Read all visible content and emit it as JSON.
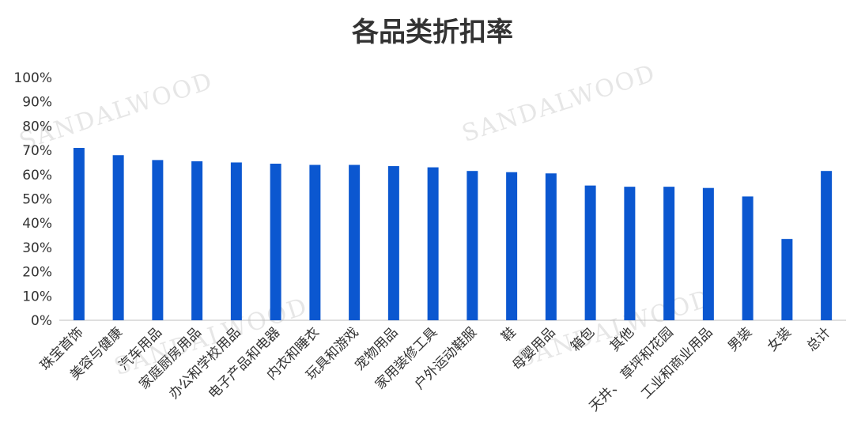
{
  "chart_data": {
    "type": "bar",
    "title": "各品类折扣率",
    "xlabel": "",
    "ylabel": "",
    "ylim": [
      0,
      1
    ],
    "yticks": [
      "0%",
      "10%",
      "20%",
      "30%",
      "40%",
      "50%",
      "60%",
      "70%",
      "80%",
      "90%",
      "100%"
    ],
    "categories": [
      "珠宝首饰",
      "美容与健康",
      "汽车用品",
      "家庭厨房用品",
      "办公和学校用品",
      "电子产品和电器",
      "内衣和睡衣",
      "玩具和游戏",
      "宠物用品",
      "家用装修工具",
      "户外运动鞋服",
      "鞋",
      "母婴用品",
      "箱包",
      "其他",
      "天井、 草坪和花园",
      "工业和商业用品",
      "男装",
      "女装",
      "总计"
    ],
    "values": [
      0.71,
      0.68,
      0.66,
      0.655,
      0.65,
      0.645,
      0.64,
      0.64,
      0.635,
      0.63,
      0.615,
      0.61,
      0.605,
      0.555,
      0.55,
      0.55,
      0.545,
      0.51,
      0.335,
      0.615
    ],
    "bar_color": "#0b57d0",
    "grid": false,
    "legend": "none"
  },
  "watermark": "SANDALWOOD"
}
